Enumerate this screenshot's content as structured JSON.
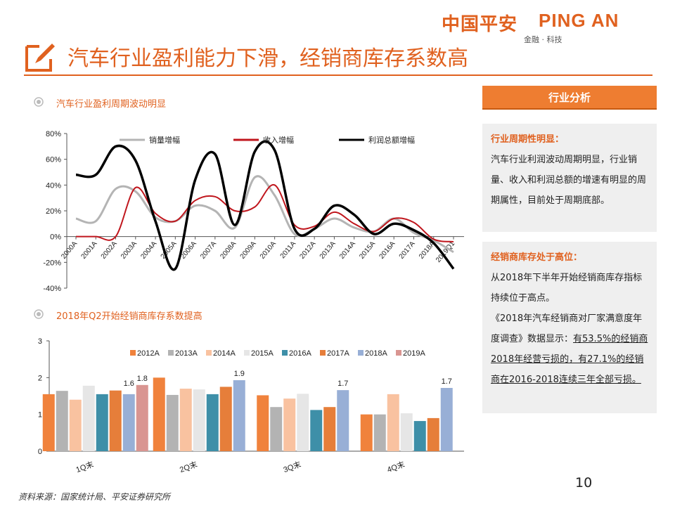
{
  "logo": {
    "cn": "中国平安",
    "en": "PING AN",
    "tagline": "金融 · 科技"
  },
  "title": "汽车行业盈利能力下滑，经销商库存系数高",
  "page_number": "10",
  "source": "资料来源：国家统计局、平安证券研究所",
  "sections": {
    "chart1": "汽车行业盈利周期波动明显",
    "chart2": "2018年Q2开始经销商库存系数提高"
  },
  "sidebar": {
    "banner": "行业分析",
    "box1": {
      "heading": "行业周期性明显：",
      "body": "汽车行业利润波动周期明显，行业销量、收入和利润总额的增速有明显的周期属性，目前处于周期底部。"
    },
    "box2": {
      "heading": "经销商库存处于高位：",
      "line1": "从2018年下半年开始经销商库存指标持续位于高点。",
      "line2": "《2018年汽车经销商对厂家满意度年度调查》数据显示：",
      "line3": "有53.5%的经销商2018年经营亏损的，有27.1%的经销商在2016-2018连续三年全部亏损。"
    }
  },
  "colors": {
    "accent": "#e0611f"
  },
  "chart_data": [
    {
      "type": "line",
      "x": [
        "2000A",
        "2001A",
        "2002A",
        "2003A",
        "2004A",
        "2005A",
        "2006A",
        "2007A",
        "2008A",
        "2009A",
        "2010A",
        "2011A",
        "2012A",
        "2013A",
        "2014A",
        "2015A",
        "2016A",
        "2017A",
        "2018A",
        "2019Q1"
      ],
      "series": [
        {
          "name": "销量增幅",
          "color": "#b4b4b4",
          "values": [
            14,
            12,
            37,
            35,
            15,
            12,
            24,
            20,
            7,
            46,
            32,
            2,
            6,
            14,
            7,
            4,
            14,
            3,
            -3,
            -12
          ]
        },
        {
          "name": "收入增幅",
          "color": "#c0161d",
          "values": [
            0,
            0,
            0,
            38,
            18,
            12,
            28,
            31,
            20,
            23,
            40,
            9,
            8,
            19,
            10,
            4,
            14,
            11,
            -2,
            -4
          ]
        },
        {
          "name": "利润总额增幅",
          "color": "#000000",
          "values": [
            48,
            48,
            70,
            59,
            12,
            -25,
            44,
            64,
            9,
            66,
            67,
            6,
            6,
            24,
            17,
            2,
            10,
            5,
            -5,
            -25
          ]
        }
      ],
      "ylim": [
        -40,
        80
      ],
      "yticks": [
        "80%",
        "60%",
        "40%",
        "20%",
        "0%",
        "-20%",
        "-40%"
      ],
      "legend_position": "top"
    },
    {
      "type": "bar",
      "categories": [
        "1Q末",
        "2Q末",
        "3Q末",
        "4Q末"
      ],
      "series": [
        {
          "name": "2012A",
          "color": "#f0823c",
          "values": [
            1.55,
            2.0,
            1.52,
            1.0
          ]
        },
        {
          "name": "2013A",
          "color": "#b3b3b3",
          "values": [
            1.64,
            1.53,
            1.2,
            1.0
          ]
        },
        {
          "name": "2014A",
          "color": "#f9c2a0",
          "values": [
            1.4,
            1.7,
            1.43,
            1.55
          ]
        },
        {
          "name": "2015A",
          "color": "#e6e6e6",
          "values": [
            1.78,
            1.68,
            1.56,
            1.03
          ]
        },
        {
          "name": "2016A",
          "color": "#3e8fa8",
          "values": [
            1.55,
            1.55,
            1.12,
            0.82
          ]
        },
        {
          "name": "2017A",
          "color": "#e67e3a",
          "values": [
            1.65,
            1.75,
            1.2,
            0.9
          ]
        },
        {
          "name": "2018A",
          "color": "#98afd6",
          "values": [
            1.55,
            1.93,
            1.66,
            1.72
          ]
        },
        {
          "name": "2019A",
          "color": "#d99591",
          "values": [
            1.8,
            null,
            null,
            null
          ]
        }
      ],
      "ylim": [
        0,
        3
      ],
      "yticks": [
        "3",
        "2",
        "1",
        "0"
      ],
      "data_labels": [
        {
          "category": "1Q末",
          "series": "2018A",
          "text": "1.6"
        },
        {
          "category": "1Q末",
          "series": "2019A",
          "text": "1.8"
        },
        {
          "category": "2Q末",
          "series": "2018A",
          "text": "1.9"
        },
        {
          "category": "3Q末",
          "series": "2018A",
          "text": "1.7"
        },
        {
          "category": "4Q末",
          "series": "2018A",
          "text": "1.7"
        }
      ],
      "legend_position": "top"
    }
  ]
}
